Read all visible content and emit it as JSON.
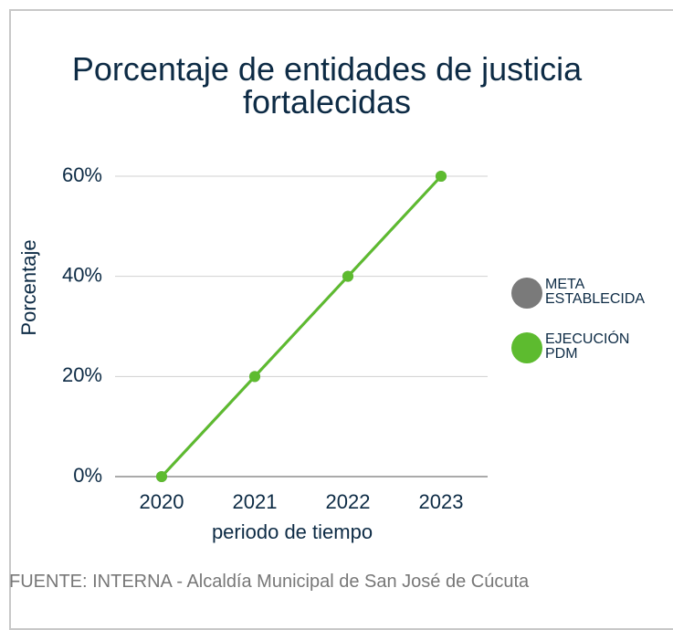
{
  "chart_data": {
    "type": "line",
    "title": "Porcentaje de entidades de justicia fortalecidas",
    "x_label": "periodo de tiempo",
    "y_label": "Porcentaje",
    "categories": [
      "2020",
      "2021",
      "2022",
      "2023"
    ],
    "series": [
      {
        "name": "META ESTABLECIDA",
        "color": "#7a7a7a",
        "values": [
          0,
          20,
          40,
          60
        ]
      },
      {
        "name": "EJECUCIÓN PDM",
        "color": "#5dbb2f",
        "values": [
          0,
          20,
          40,
          60
        ]
      }
    ],
    "ylim": [
      0,
      60
    ],
    "yticks": [
      {
        "value": 0,
        "label": "0%"
      },
      {
        "value": 20,
        "label": "20%"
      },
      {
        "value": 40,
        "label": "40%"
      },
      {
        "value": 60,
        "label": "60%"
      }
    ],
    "grid": true,
    "legend": "right",
    "source": "FUENTE: INTERNA - Alcaldía Municipal de San José de Cúcuta"
  }
}
